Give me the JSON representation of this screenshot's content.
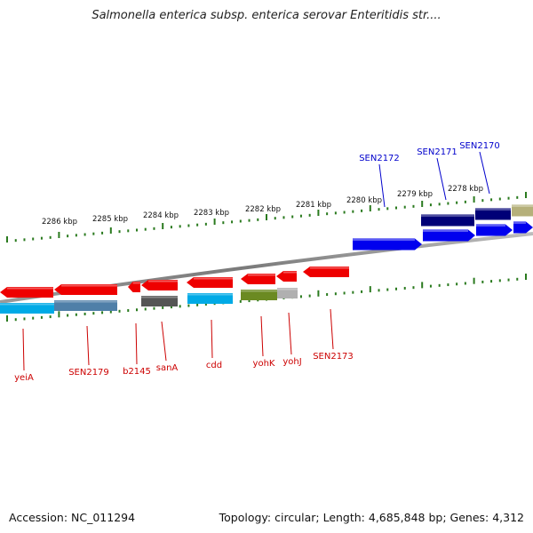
{
  "title": "Salmonella enterica subsp. enterica serovar Enteritidis str....",
  "footer": {
    "accession": "Accession: NC_011294",
    "summary": "Topology: circular; Length: 4,685,848 bp; Genes: 4,312"
  },
  "colors": {
    "backbone": "#888888",
    "tick": "#2a7a1e",
    "forward_label": "#0000cc",
    "reverse_label": "#cc0000",
    "red": "#ee0000",
    "blue": "#0000ee",
    "navy": "#000077",
    "cyan": "#00aae6",
    "steel": "#4f7fa8",
    "gray": "#555555",
    "light_gray": "#b0b0b0",
    "olive": "#6b8a22",
    "khaki": "#b5b07a"
  },
  "kbp_labels": [
    "2286 kbp",
    "2285 kbp",
    "2284 kbp",
    "2283 kbp",
    "2282 kbp",
    "2281 kbp",
    "2280 kbp",
    "2279 kbp",
    "2278 kbp"
  ],
  "forward_genes": [
    {
      "name": "SEN2172"
    },
    {
      "name": "SEN2171"
    },
    {
      "name": "SEN2170"
    }
  ],
  "reverse_genes": [
    {
      "name": "yeiA"
    },
    {
      "name": "SEN2179"
    },
    {
      "name": "b2145"
    },
    {
      "name": "sanA"
    },
    {
      "name": "cdd"
    },
    {
      "name": "yohK"
    },
    {
      "name": "yohJ"
    },
    {
      "name": "SEN2173"
    }
  ]
}
